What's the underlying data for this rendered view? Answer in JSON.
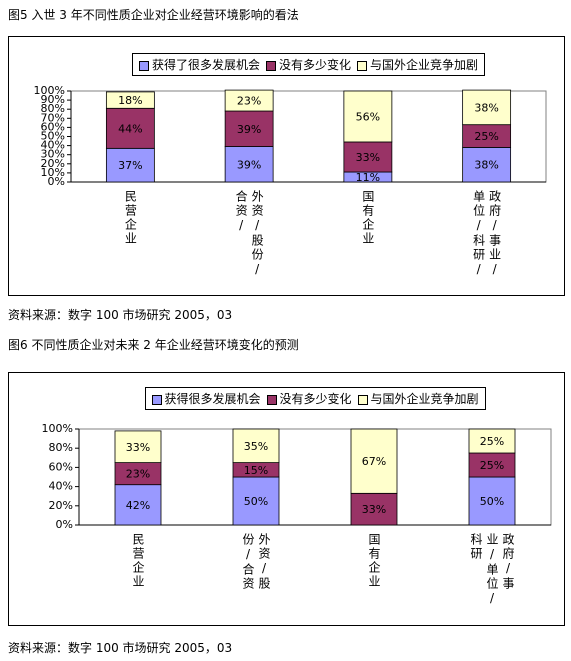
{
  "caption1": "图5 入世 3 年不同性质企业对企业经营环境影响的看法",
  "source1": "资料来源：数字 100 市场研究 2005，03",
  "caption2": "图6 不同性质企业对未来 2 年企业经营环境变化的预测",
  "source2": "资料来源：数字 100 市场研究 2005，03",
  "chart_data": [
    {
      "type": "bar",
      "stacked": true,
      "categories": [
        "民营企业",
        "外资/股份/合资/",
        "国有企业",
        "政府/事业/单位/科研/"
      ],
      "series": [
        {
          "name": "获得了很多发展机会",
          "color": "#9999ff",
          "values": [
            37,
            39,
            11,
            38
          ],
          "value_labels": [
            "37%",
            "39%",
            "11%",
            "38%"
          ]
        },
        {
          "name": "没有多少变化",
          "color": "#993366",
          "values": [
            44,
            39,
            33,
            25
          ],
          "value_labels": [
            "44%",
            "39%",
            "33%",
            "25%"
          ]
        },
        {
          "name": "与国外企业竞争加剧",
          "color": "#ffffcc",
          "values": [
            18,
            23,
            56,
            38
          ],
          "value_labels": [
            "18%",
            "23%",
            "56%",
            "38%"
          ]
        }
      ],
      "ylim": [
        0,
        100
      ],
      "yticks": [
        {
          "value": 0,
          "label": "0%"
        },
        {
          "value": 10,
          "label": "10%"
        },
        {
          "value": 20,
          "label": "20%"
        },
        {
          "value": 30,
          "label": "30%"
        },
        {
          "value": 40,
          "label": "40%"
        },
        {
          "value": 50,
          "label": "50%"
        },
        {
          "value": 60,
          "label": "60%"
        },
        {
          "value": 70,
          "label": "70%"
        },
        {
          "value": 80,
          "label": "80%"
        },
        {
          "value": 90,
          "label": "90%"
        },
        {
          "value": 100,
          "label": "100%"
        }
      ]
    },
    {
      "type": "bar",
      "stacked": true,
      "categories": [
        "民营企业",
        "外资/股份/合资",
        "国有企业",
        "政府/事业/单位/科研"
      ],
      "series": [
        {
          "name": "获得很多发展机会",
          "color": "#9999ff",
          "values": [
            42,
            50,
            0,
            50
          ],
          "value_labels": [
            "42%",
            "50%",
            null,
            "50%"
          ]
        },
        {
          "name": "没有多少变化",
          "color": "#993366",
          "values": [
            23,
            15,
            33,
            25
          ],
          "value_labels": [
            "23%",
            "15%",
            "33%",
            "25%"
          ]
        },
        {
          "name": "与国外企业竞争加剧",
          "color": "#ffffcc",
          "values": [
            33,
            35,
            67,
            25
          ],
          "value_labels": [
            "33%",
            "35%",
            "67%",
            "25%"
          ]
        }
      ],
      "ylim": [
        0,
        100
      ],
      "yticks": [
        {
          "value": 0,
          "label": "0%"
        },
        {
          "value": 20,
          "label": "20%"
        },
        {
          "value": 40,
          "label": "40%"
        },
        {
          "value": 60,
          "label": "60%"
        },
        {
          "value": 80,
          "label": "80%"
        },
        {
          "value": 100,
          "label": "100%"
        }
      ]
    }
  ]
}
